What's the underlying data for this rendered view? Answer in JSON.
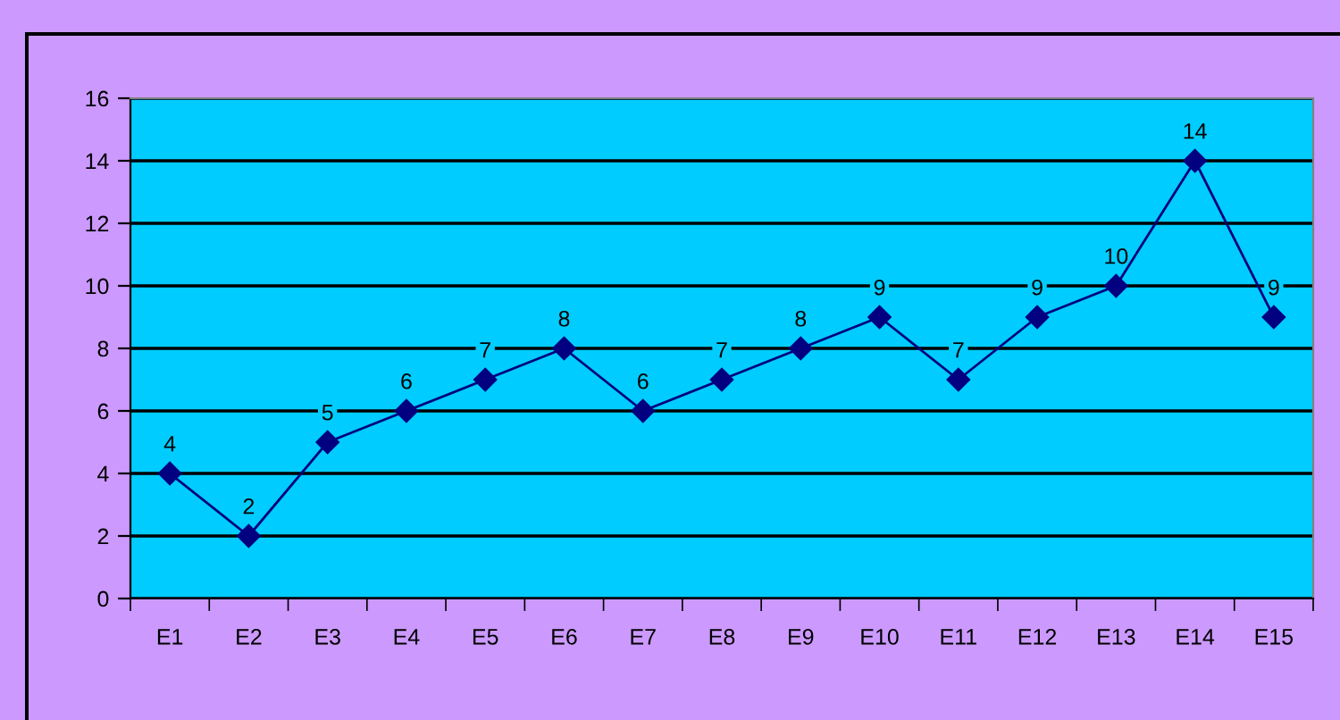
{
  "chart_data": {
    "type": "line",
    "categories": [
      "E1",
      "E2",
      "E3",
      "E4",
      "E5",
      "E6",
      "E7",
      "E8",
      "E9",
      "E10",
      "E11",
      "E12",
      "E13",
      "E14",
      "E15"
    ],
    "series": [
      {
        "color": "#000080",
        "values": [
          4,
          2,
          5,
          6,
          7,
          8,
          6,
          7,
          8,
          9,
          7,
          9,
          10,
          14,
          9
        ]
      }
    ],
    "ylim": [
      0,
      16
    ],
    "yticks": [
      0,
      2,
      4,
      6,
      8,
      10,
      12,
      14,
      16
    ],
    "grid": "y",
    "marker": "diamond",
    "line_style": "solid",
    "data_labels": true
  }
}
